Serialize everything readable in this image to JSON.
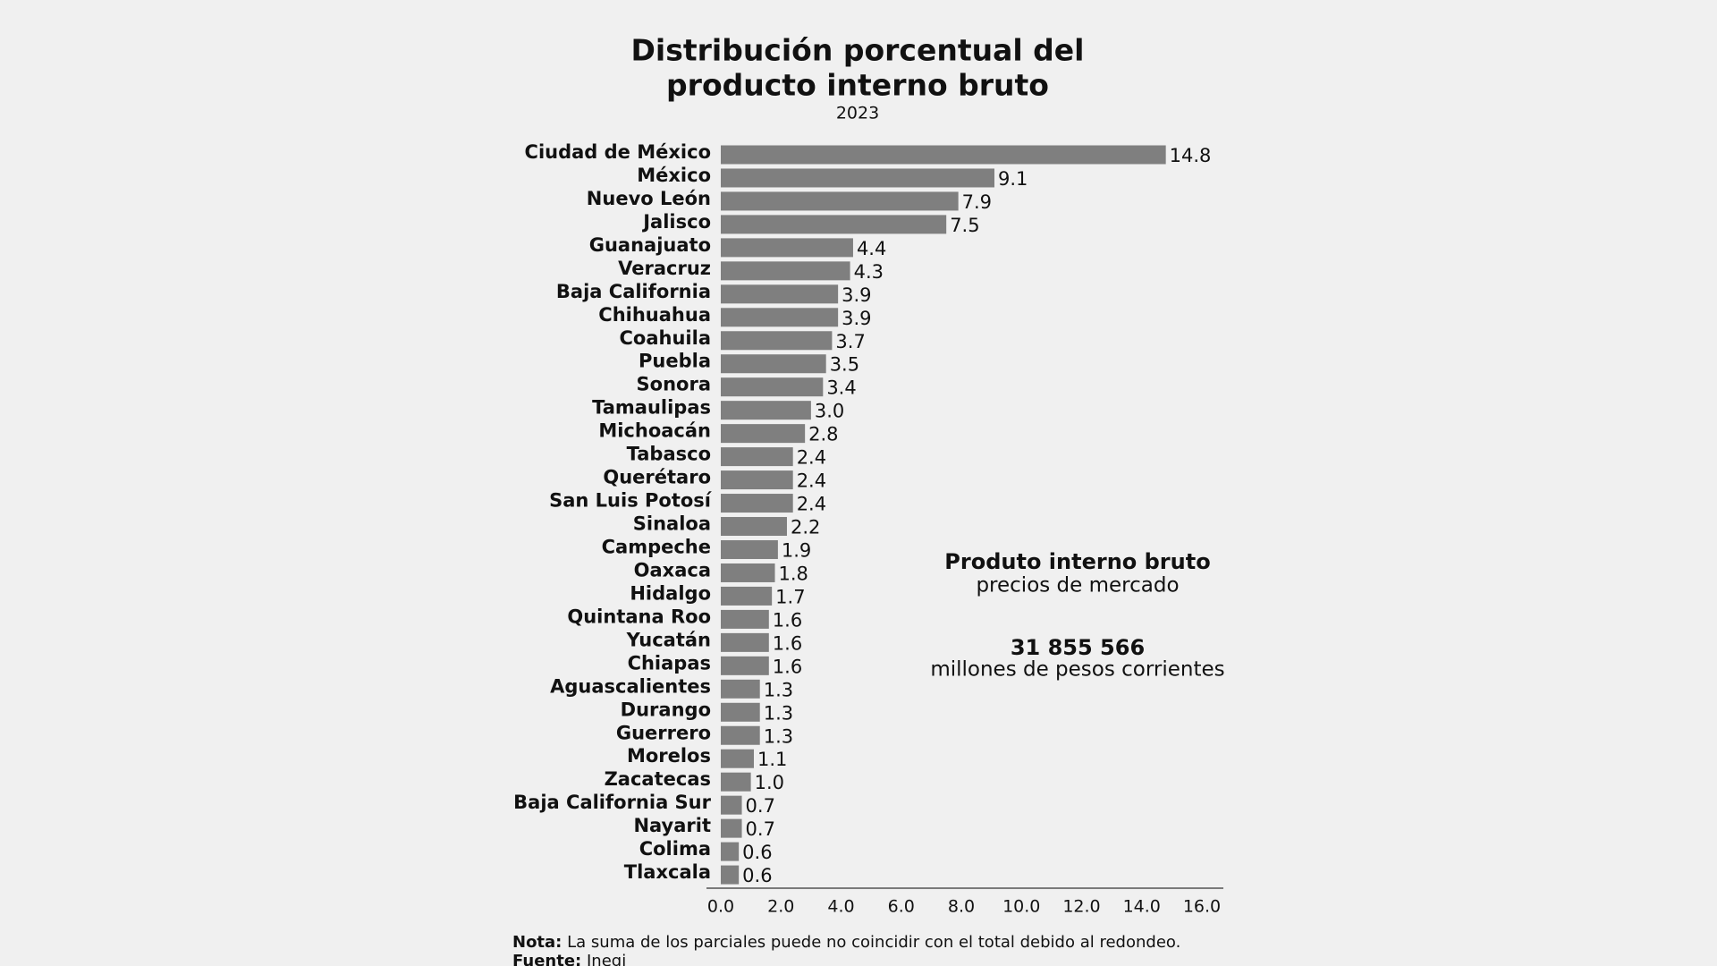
{
  "chart_data": {
    "type": "barh",
    "title": [
      "Distribución porcentual del",
      "producto interno bruto"
    ],
    "subtitle": "2023",
    "categories": [
      "Ciudad de México",
      "México",
      "Nuevo León",
      "Jalisco",
      "Guanajuato",
      "Veracruz",
      "Baja California",
      "Chihuahua",
      "Coahuila",
      "Puebla",
      "Sonora",
      "Tamaulipas",
      "Michoacán",
      "Tabasco",
      "Querétaro",
      "San Luis Potosí",
      "Sinaloa",
      "Campeche",
      "Oaxaca",
      "Hidalgo",
      "Quintana Roo",
      "Yucatán",
      "Chiapas",
      "Aguascalientes",
      "Durango",
      "Guerrero",
      "Morelos",
      "Zacatecas",
      "Baja California Sur",
      "Nayarit",
      "Colima",
      "Tlaxcala"
    ],
    "values": [
      14.8,
      9.1,
      7.9,
      7.5,
      4.4,
      4.3,
      3.9,
      3.9,
      3.7,
      3.5,
      3.4,
      3.0,
      2.8,
      2.4,
      2.4,
      2.4,
      2.2,
      1.9,
      1.8,
      1.7,
      1.6,
      1.6,
      1.6,
      1.3,
      1.3,
      1.3,
      1.1,
      1.0,
      0.7,
      0.7,
      0.6,
      0.6
    ],
    "value_labels": [
      "14.8",
      "9.1",
      "7.9",
      "7.5",
      "4.4",
      "4.3",
      "3.9",
      "3.9",
      "3.7",
      "3.5",
      "3.4",
      "3.0",
      "2.8",
      "2.4",
      "2.4",
      "2.4",
      "2.2",
      "1.9",
      "1.8",
      "1.7",
      "1.6",
      "1.6",
      "1.6",
      "1.3",
      "1.3",
      "1.3",
      "1.1",
      "1.0",
      "0.7",
      "0.7",
      "0.6",
      "0.6"
    ],
    "color": "#7f7f7f",
    "xlim": [
      0,
      16
    ],
    "xticks": [
      {
        "value": 0,
        "label": "0.0"
      },
      {
        "value": 2,
        "label": "2.0"
      },
      {
        "value": 4,
        "label": "4.0"
      },
      {
        "value": 6,
        "label": "6.0"
      },
      {
        "value": 8,
        "label": "8.0"
      },
      {
        "value": 10,
        "label": "10.0"
      },
      {
        "value": 12,
        "label": "12.0"
      },
      {
        "value": 14,
        "label": "14.0"
      },
      {
        "value": 16,
        "label": "16.0"
      }
    ],
    "annotation": {
      "title": "Produto interno bruto",
      "subtitle": "precios de mercado",
      "value": "31 855 566",
      "unit": "millones de pesos corrientes"
    },
    "note": {
      "label": "Nota:",
      "text": "La suma de los parciales puede no coincidir con el total debido al redondeo."
    },
    "source": {
      "label": "Fuente:",
      "text": "Inegi"
    }
  }
}
